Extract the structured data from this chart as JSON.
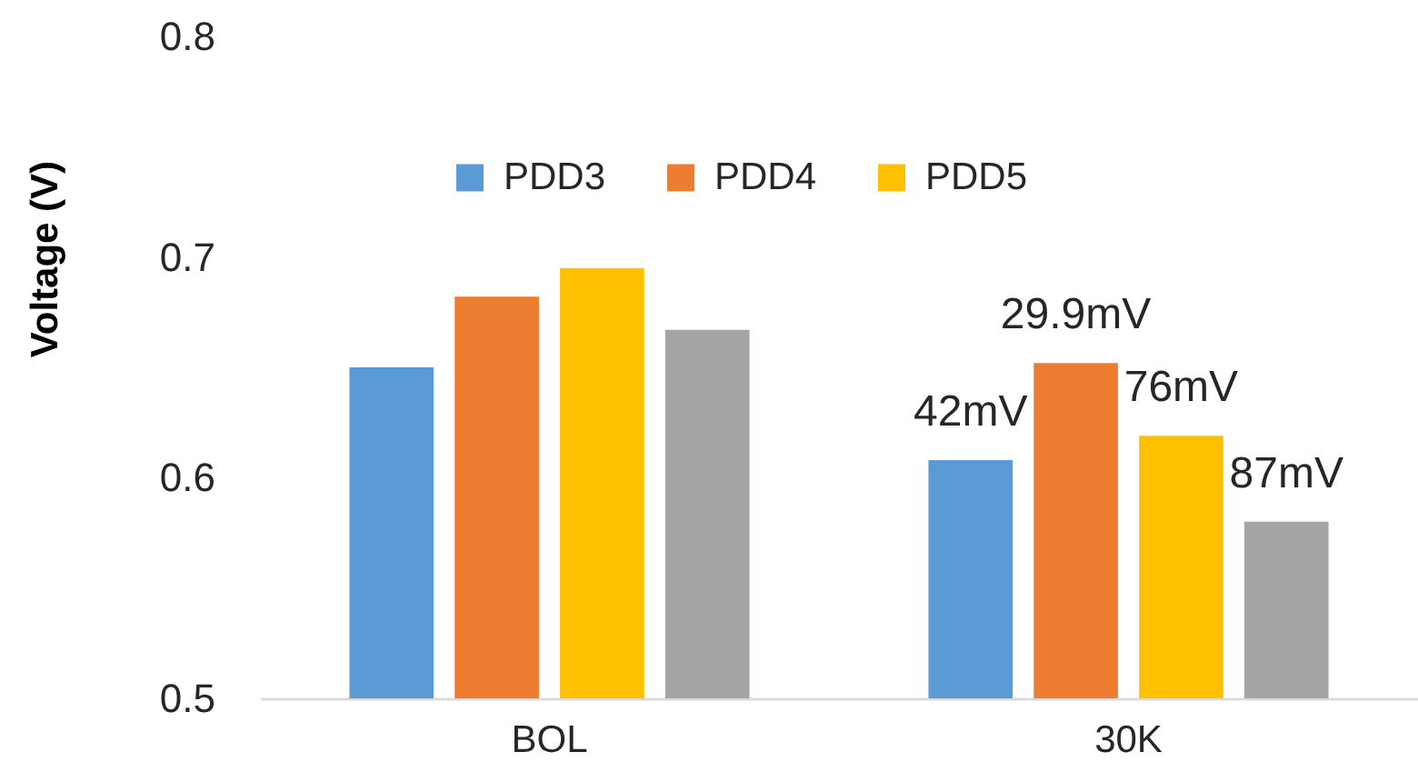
{
  "chart_data": {
    "type": "bar",
    "ylabel": "Voltage (V)",
    "categories": [
      "BOL",
      "30K"
    ],
    "series": [
      {
        "name": "PDD3",
        "color": "#5b9bd5",
        "values": [
          0.65,
          0.608
        ]
      },
      {
        "name": "PDD4",
        "color": "#ed7d31",
        "values": [
          0.682,
          0.652
        ]
      },
      {
        "name": "PDD5",
        "color": "#ffc000",
        "values": [
          0.695,
          0.619
        ]
      },
      {
        "color": "#a5a5a5",
        "values": [
          0.667,
          0.58
        ]
      }
    ],
    "annotations": [
      "42mV",
      "29.9mV",
      "76mV",
      "87mV"
    ],
    "ylim": [
      0.5,
      0.8
    ],
    "yticks": [
      0.5,
      0.6,
      0.7,
      0.8
    ],
    "legend": "top",
    "grid": false
  }
}
